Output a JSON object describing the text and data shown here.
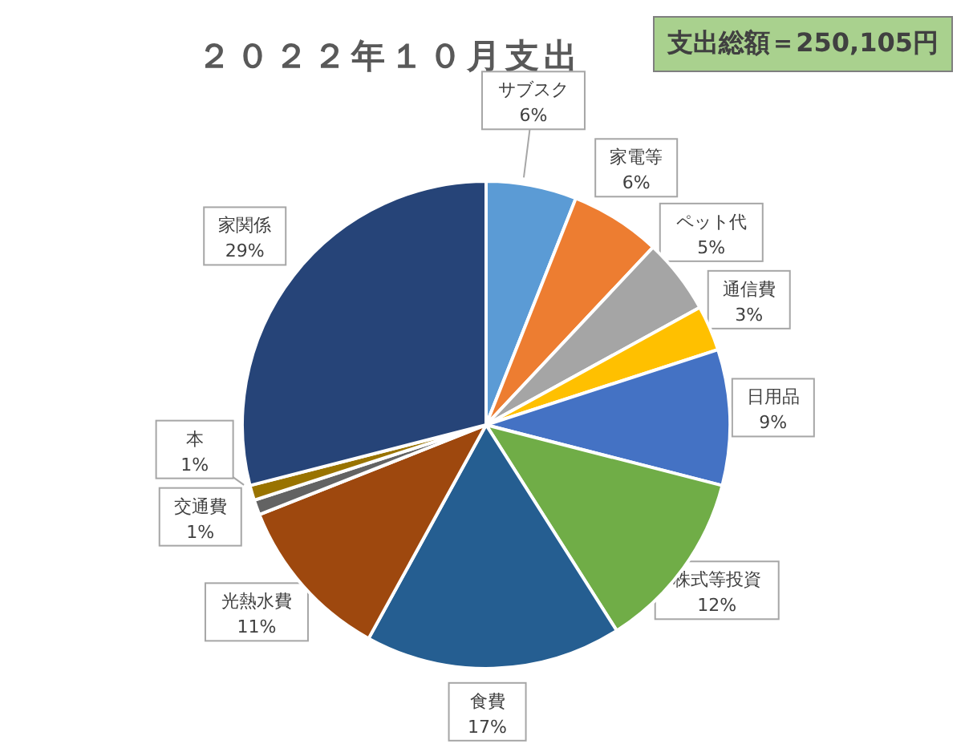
{
  "chart_data": {
    "type": "pie",
    "title": "２０２２年１０月支出",
    "annotations": [
      "支出総額＝250,105円"
    ],
    "categories": [
      "サブスク",
      "家電等",
      "ペット代",
      "通信費",
      "日用品",
      "株式等投資",
      "食費",
      "光熱水費",
      "交通費",
      "本",
      "家関係"
    ],
    "values": [
      6,
      6,
      5,
      3,
      9,
      12,
      17,
      11,
      1,
      1,
      29
    ],
    "value_labels": [
      "6%",
      "6%",
      "5%",
      "3%",
      "9%",
      "12%",
      "17%",
      "11%",
      "1%",
      "1%",
      "29%"
    ],
    "colors": [
      "#5b9bd5",
      "#ed7d31",
      "#a5a5a5",
      "#ffc000",
      "#4472c4",
      "#70ad47",
      "#255e91",
      "#9e480e",
      "#636363",
      "#997300",
      "#264478"
    ]
  }
}
